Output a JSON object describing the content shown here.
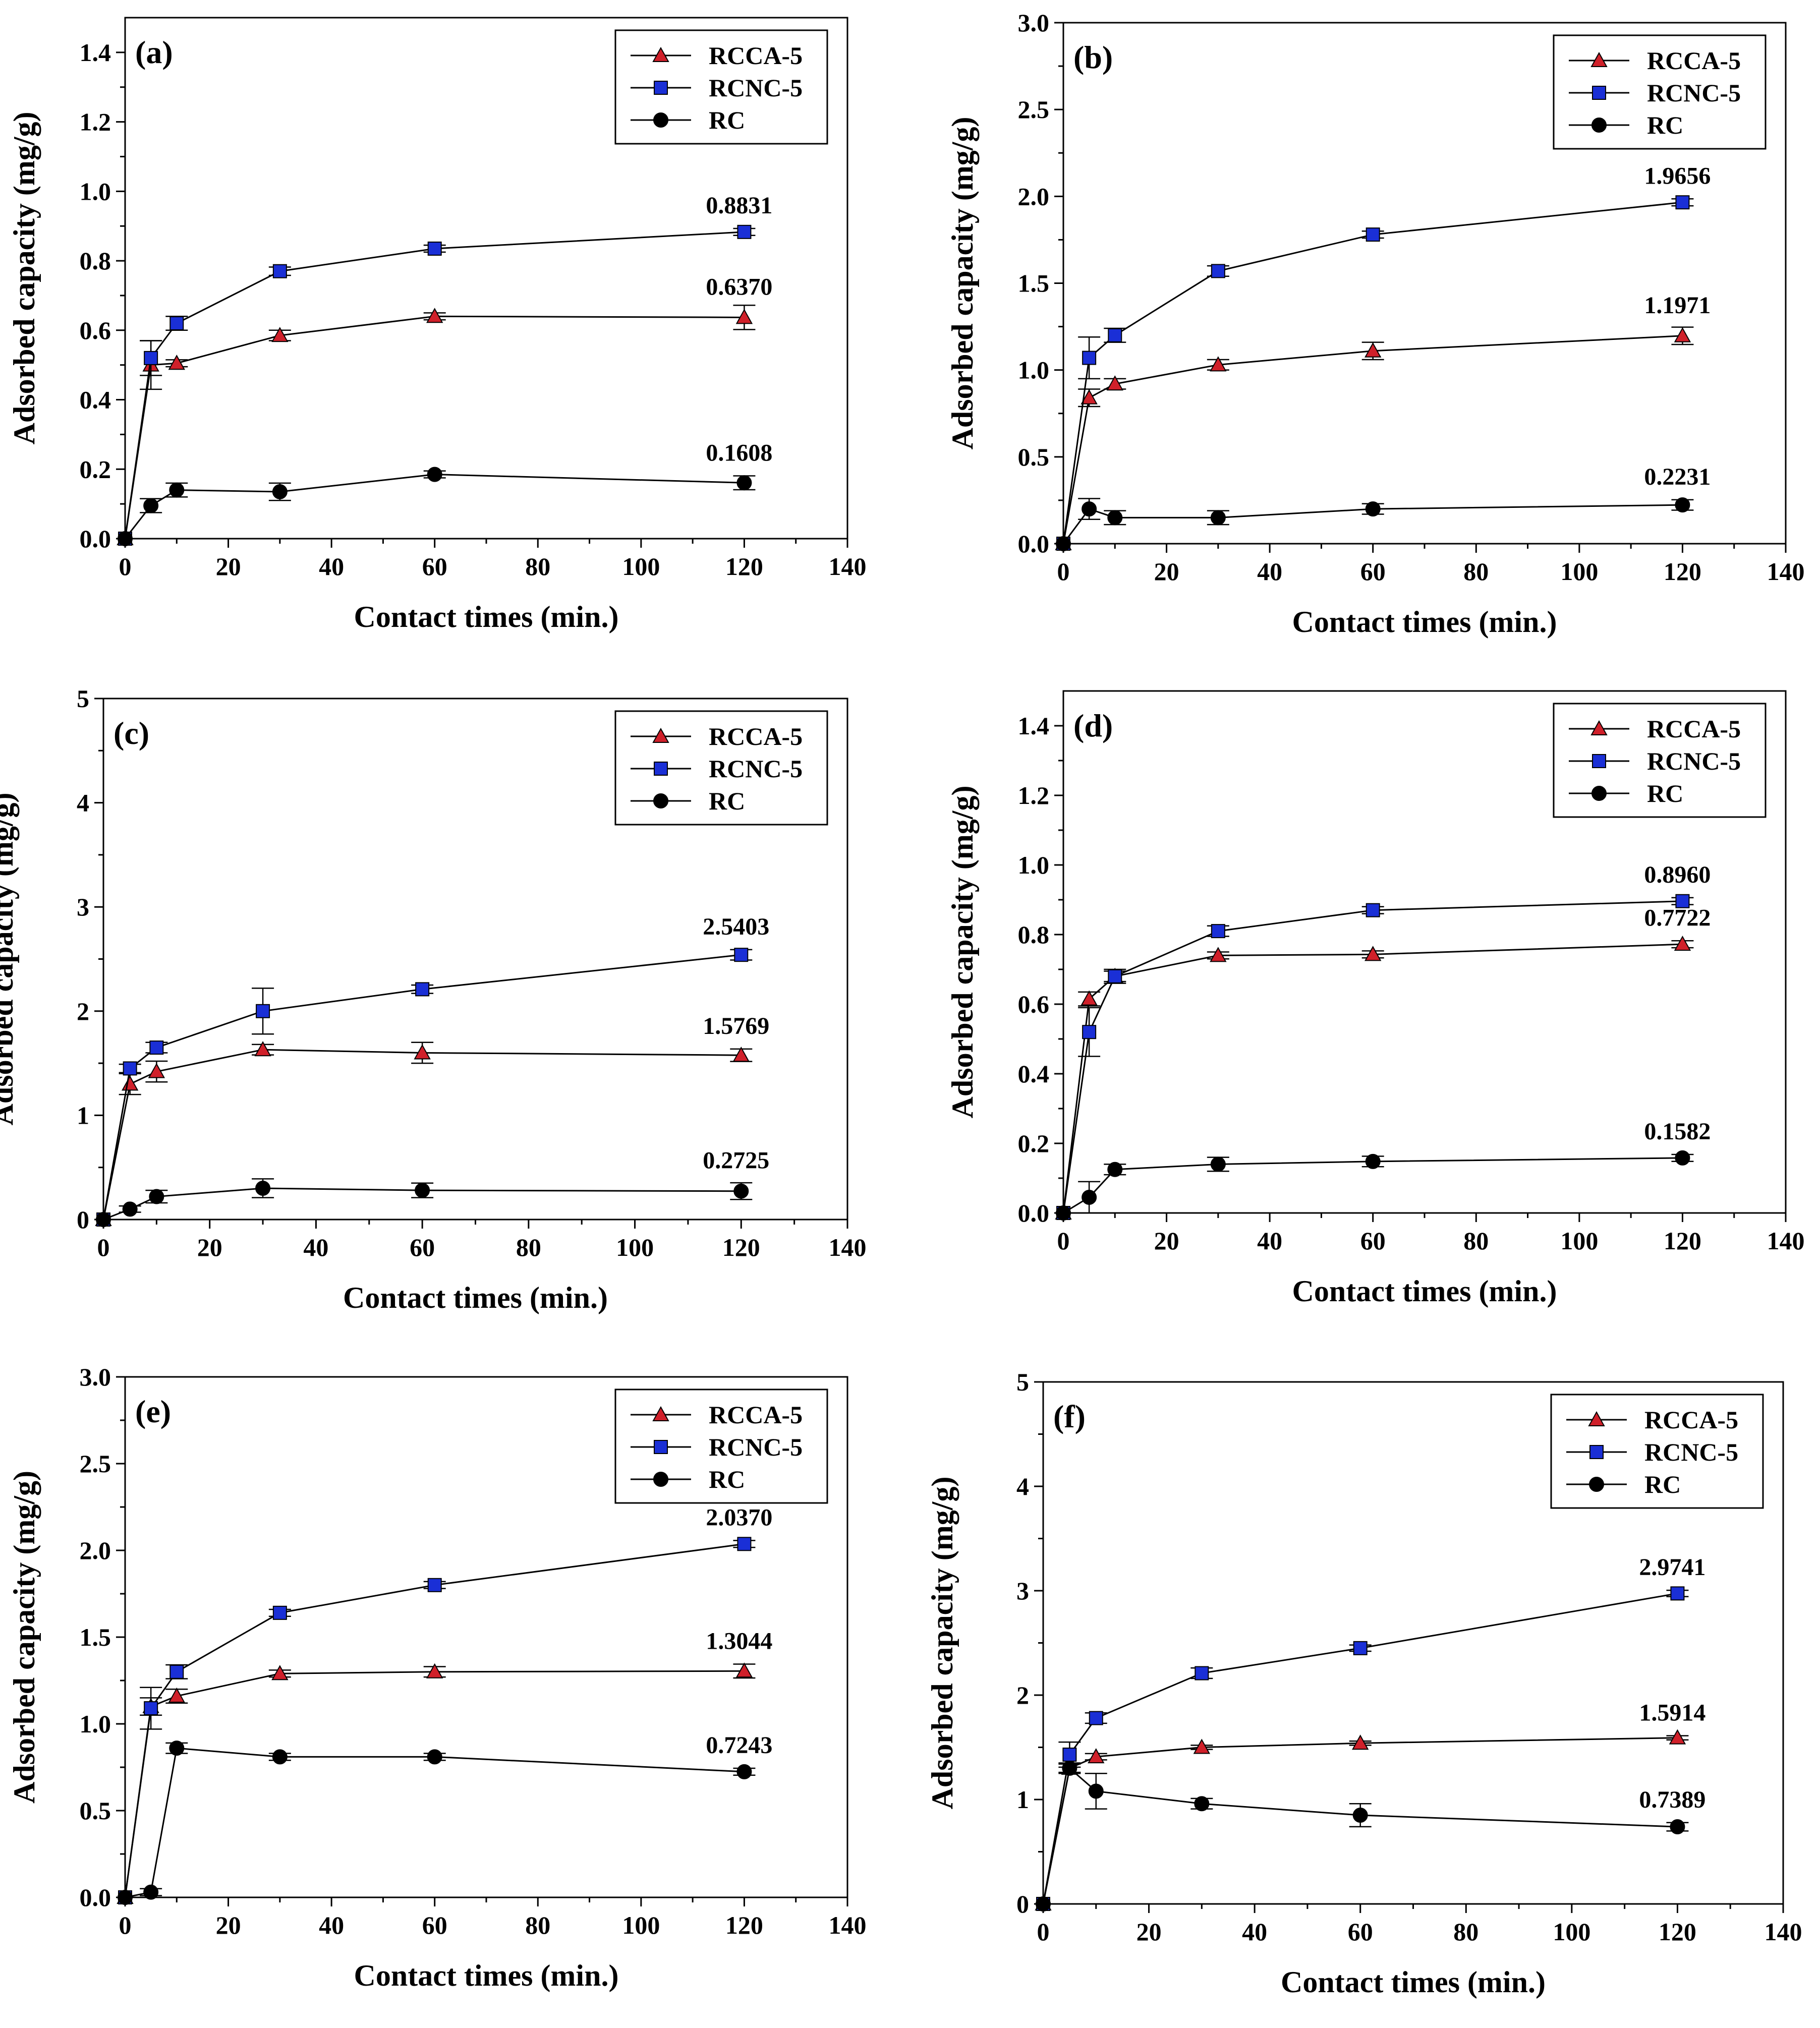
{
  "figure": {
    "colors": {
      "RCCA-5": "#d0202a",
      "RCNC-5": "#1a2fd6",
      "RC": "#000000"
    },
    "legend_order": [
      "RCCA-5",
      "RCNC-5",
      "RC"
    ]
  },
  "chart_data": [
    {
      "panel": "(a)",
      "type": "line",
      "xlabel": "Contact times (min.)",
      "ylabel": "Adsorbed capacity (mg/g)",
      "xlim": [
        0,
        140
      ],
      "ylim": [
        0,
        1.5
      ],
      "xticks": [
        "0",
        "20",
        "40",
        "60",
        "80",
        "100",
        "120",
        "140"
      ],
      "yticks": [
        "0.0",
        "0.2",
        "0.4",
        "0.6",
        "0.8",
        "1.0",
        "1.2",
        "1.4"
      ],
      "ytick_values": [
        0,
        0.2,
        0.4,
        0.6,
        0.8,
        1.0,
        1.2,
        1.4
      ],
      "legend": [
        "RCCA-5",
        "RCNC-5",
        "RC"
      ],
      "x": [
        0,
        5,
        10,
        30,
        60,
        120
      ],
      "series": [
        {
          "name": "RCCA-5",
          "values": [
            0,
            0.5,
            0.505,
            0.585,
            0.64,
            0.637
          ],
          "errors": [
            0,
            0.07,
            0.01,
            0.015,
            0.01,
            0.035
          ],
          "end_label": "0.6370"
        },
        {
          "name": "RCNC-5",
          "values": [
            0,
            0.52,
            0.62,
            0.77,
            0.835,
            0.8831
          ],
          "errors": [
            0,
            0.05,
            0.02,
            0.012,
            0.01,
            0.01
          ],
          "end_label": "0.8831"
        },
        {
          "name": "RC",
          "values": [
            0,
            0.095,
            0.14,
            0.135,
            0.185,
            0.1608
          ],
          "errors": [
            0,
            0.02,
            0.02,
            0.025,
            0.01,
            0.02
          ],
          "end_label": "0.1608"
        }
      ]
    },
    {
      "panel": "(b)",
      "type": "line",
      "xlabel": "Contact times (min.)",
      "ylabel": "Adsorbed capacity (mg/g)",
      "xlim": [
        0,
        140
      ],
      "ylim": [
        0,
        3.0
      ],
      "xticks": [
        "0",
        "20",
        "40",
        "60",
        "80",
        "100",
        "120",
        "140"
      ],
      "yticks": [
        "0.0",
        "0.5",
        "1.0",
        "1.5",
        "2.0",
        "2.5",
        "3.0"
      ],
      "ytick_values": [
        0,
        0.5,
        1.0,
        1.5,
        2.0,
        2.5,
        3.0
      ],
      "legend": [
        "RCCA-5",
        "RCNC-5",
        "RC"
      ],
      "x": [
        0,
        5,
        10,
        30,
        60,
        120
      ],
      "series": [
        {
          "name": "RCCA-5",
          "values": [
            0,
            0.84,
            0.92,
            1.03,
            1.11,
            1.1971
          ],
          "errors": [
            0,
            0.05,
            0.03,
            0.03,
            0.05,
            0.05
          ],
          "end_label": "1.1971"
        },
        {
          "name": "RCNC-5",
          "values": [
            0,
            1.07,
            1.2,
            1.57,
            1.78,
            1.9656
          ],
          "errors": [
            0,
            0.12,
            0.04,
            0.03,
            0.02,
            0.02
          ],
          "end_label": "1.9656"
        },
        {
          "name": "RC",
          "values": [
            0,
            0.2,
            0.15,
            0.15,
            0.2,
            0.2231
          ],
          "errors": [
            0,
            0.06,
            0.04,
            0.04,
            0.03,
            0.03
          ],
          "end_label": "0.2231"
        }
      ]
    },
    {
      "panel": "(c)",
      "type": "line",
      "xlabel": "Contact times (min.)",
      "ylabel": "Adsorbed capacity (mg/g)",
      "xlim": [
        0,
        140
      ],
      "ylim": [
        0,
        5
      ],
      "xticks": [
        "0",
        "20",
        "40",
        "60",
        "80",
        "100",
        "120",
        "140"
      ],
      "yticks": [
        "0",
        "1",
        "2",
        "3",
        "4",
        "5"
      ],
      "ytick_values": [
        0,
        1,
        2,
        3,
        4,
        5
      ],
      "legend": [
        "RCCA-5",
        "RCNC-5",
        "RC"
      ],
      "x": [
        0,
        5,
        10,
        30,
        60,
        120
      ],
      "series": [
        {
          "name": "RCCA-5",
          "values": [
            0,
            1.3,
            1.42,
            1.63,
            1.6,
            1.5769
          ],
          "errors": [
            0,
            0.1,
            0.1,
            0.05,
            0.1,
            0.06
          ],
          "end_label": "1.5769"
        },
        {
          "name": "RCNC-5",
          "values": [
            0,
            1.45,
            1.65,
            2.0,
            2.21,
            2.5403
          ],
          "errors": [
            0,
            0.04,
            0.05,
            0.22,
            0.04,
            0.05
          ],
          "end_label": "2.5403"
        },
        {
          "name": "RC",
          "values": [
            0,
            0.1,
            0.22,
            0.3,
            0.28,
            0.2725
          ],
          "errors": [
            0,
            0.03,
            0.06,
            0.09,
            0.07,
            0.08
          ],
          "end_label": "0.2725"
        }
      ]
    },
    {
      "panel": "(d)",
      "type": "line",
      "xlabel": "Contact times (min.)",
      "ylabel": "Adsorbed capacity (mg/g)",
      "xlim": [
        0,
        140
      ],
      "ylim": [
        0,
        1.5
      ],
      "xticks": [
        "0",
        "20",
        "40",
        "60",
        "80",
        "100",
        "120",
        "140"
      ],
      "yticks": [
        "0.0",
        "0.2",
        "0.4",
        "0.6",
        "0.8",
        "1.0",
        "1.2",
        "1.4"
      ],
      "ytick_values": [
        0,
        0.2,
        0.4,
        0.6,
        0.8,
        1.0,
        1.2,
        1.4
      ],
      "legend": [
        "RCCA-5",
        "RCNC-5",
        "RC"
      ],
      "x": [
        0,
        5,
        10,
        30,
        60,
        120
      ],
      "series": [
        {
          "name": "RCCA-5",
          "values": [
            0,
            0.615,
            0.68,
            0.74,
            0.743,
            0.7722
          ],
          "errors": [
            0,
            0.02,
            0.02,
            0.01,
            0.01,
            0.01
          ],
          "end_label": "0.7722"
        },
        {
          "name": "RCNC-5",
          "values": [
            0,
            0.52,
            0.68,
            0.81,
            0.87,
            0.896
          ],
          "errors": [
            0,
            0.07,
            0.015,
            0.015,
            0.01,
            0.01
          ],
          "end_label": "0.8960"
        },
        {
          "name": "RC",
          "values": [
            0,
            0.045,
            0.125,
            0.14,
            0.148,
            0.1582
          ],
          "errors": [
            0,
            0.045,
            0.015,
            0.02,
            0.015,
            0.01
          ],
          "end_label": "0.1582"
        }
      ]
    },
    {
      "panel": "(e)",
      "type": "line",
      "xlabel": "Contact times (min.)",
      "ylabel": "Adsorbed capacity (mg/g)",
      "xlim": [
        0,
        140
      ],
      "ylim": [
        0,
        3.0
      ],
      "xticks": [
        "0",
        "20",
        "40",
        "60",
        "80",
        "100",
        "120",
        "140"
      ],
      "yticks": [
        "0.0",
        "0.5",
        "1.0",
        "1.5",
        "2.0",
        "2.5",
        "3.0"
      ],
      "ytick_values": [
        0,
        0.5,
        1.0,
        1.5,
        2.0,
        2.5,
        3.0
      ],
      "legend": [
        "RCCA-5",
        "RCNC-5",
        "RC"
      ],
      "x": [
        0,
        5,
        10,
        30,
        60,
        120
      ],
      "series": [
        {
          "name": "RCCA-5",
          "values": [
            0,
            1.1,
            1.16,
            1.29,
            1.3,
            1.3044
          ],
          "errors": [
            0,
            0.05,
            0.04,
            0.02,
            0.03,
            0.04
          ],
          "end_label": "1.3044"
        },
        {
          "name": "RCNC-5",
          "values": [
            0,
            1.09,
            1.3,
            1.64,
            1.8,
            2.037
          ],
          "errors": [
            0,
            0.12,
            0.04,
            0.02,
            0.02,
            0.02
          ],
          "end_label": "2.0370"
        },
        {
          "name": "RC",
          "values": [
            0,
            0.03,
            0.86,
            0.81,
            0.81,
            0.7243
          ],
          "errors": [
            0,
            0.02,
            0.03,
            0.02,
            0.02,
            0.02
          ],
          "end_label": "0.7243"
        }
      ]
    },
    {
      "panel": "(f)",
      "type": "line",
      "xlabel": "Contact times (min.)",
      "ylabel": "Adsorbed capacity (mg/g)",
      "xlim": [
        0,
        140
      ],
      "ylim": [
        0,
        5
      ],
      "xticks": [
        "0",
        "20",
        "40",
        "60",
        "80",
        "100",
        "120",
        "140"
      ],
      "yticks": [
        "0",
        "1",
        "2",
        "3",
        "4",
        "5"
      ],
      "ytick_values": [
        0,
        1,
        2,
        3,
        4,
        5
      ],
      "legend": [
        "RCCA-5",
        "RCNC-5",
        "RC"
      ],
      "x": [
        0,
        5,
        10,
        30,
        60,
        120
      ],
      "series": [
        {
          "name": "RCCA-5",
          "values": [
            0,
            1.3,
            1.41,
            1.5,
            1.54,
            1.5914
          ],
          "errors": [
            0,
            0.04,
            0.03,
            0.02,
            0.02,
            0.02
          ],
          "end_label": "1.5914"
        },
        {
          "name": "RCNC-5",
          "values": [
            0,
            1.43,
            1.78,
            2.21,
            2.45,
            2.9741
          ],
          "errors": [
            0,
            0.12,
            0.05,
            0.05,
            0.03,
            0.03
          ],
          "end_label": "2.9741"
        },
        {
          "name": "RC",
          "values": [
            0,
            1.3,
            1.08,
            0.96,
            0.85,
            0.7389
          ],
          "errors": [
            0,
            0.05,
            0.17,
            0.05,
            0.11,
            0.04
          ],
          "end_label": "0.7389"
        }
      ]
    }
  ]
}
